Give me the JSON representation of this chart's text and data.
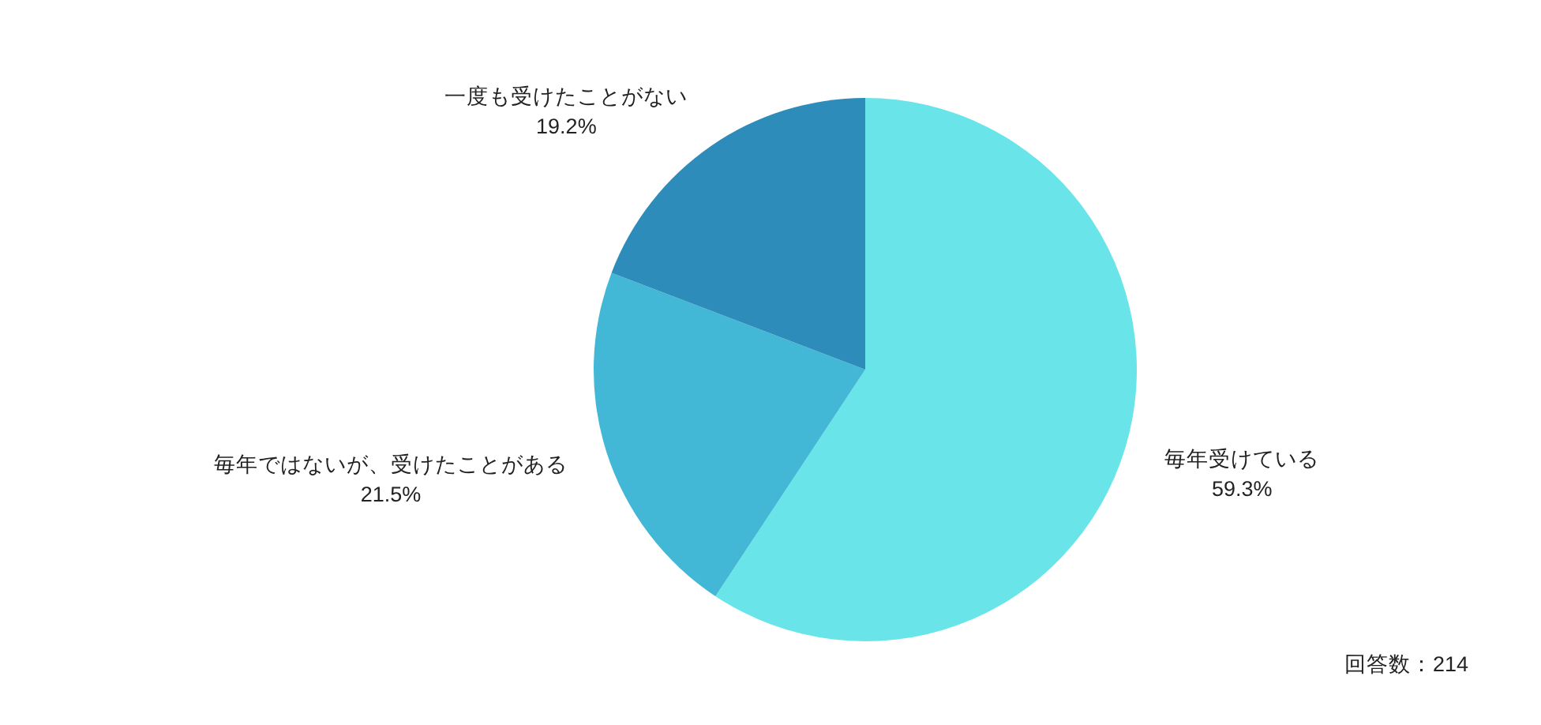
{
  "chart_data": {
    "type": "pie",
    "categories": [
      "毎年受けている",
      "毎年ではないが、受けたことがある",
      "一度も受けたことがない"
    ],
    "values": [
      59.3,
      21.5,
      19.2
    ],
    "colors": [
      "#69e5e9",
      "#43b8d6",
      "#2e8cba"
    ],
    "value_labels": [
      "59.3%",
      "21.5%",
      "19.2%"
    ],
    "annotations": [
      "回答数：214"
    ]
  }
}
